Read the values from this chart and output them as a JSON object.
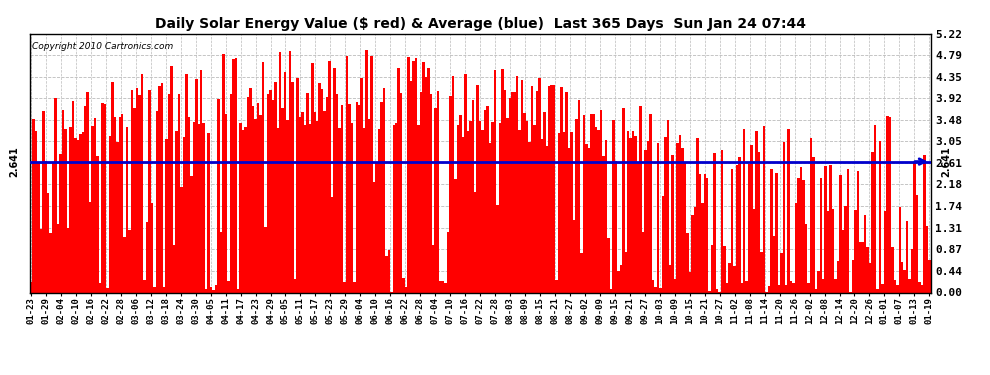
{
  "title": "Daily Solar Energy Value ($ red) & Average (blue)  Last 365 Days  Sun Jan 24 07:44",
  "copyright": "Copyright 2010 Cartronics.com",
  "average_value": 2.641,
  "ymax": 5.22,
  "yticks": [
    0.0,
    0.44,
    0.87,
    1.31,
    1.74,
    2.18,
    2.61,
    3.05,
    3.48,
    3.92,
    4.35,
    4.79,
    5.22
  ],
  "bar_color": "#ff0000",
  "avg_line_color": "#0000cd",
  "background_color": "#ffffff",
  "grid_color": "#bbbbbb",
  "x_labels": [
    "01-23",
    "01-29",
    "02-04",
    "02-10",
    "02-16",
    "02-22",
    "02-28",
    "03-06",
    "03-12",
    "03-18",
    "03-24",
    "03-30",
    "04-05",
    "04-11",
    "04-17",
    "04-23",
    "04-29",
    "05-05",
    "05-11",
    "05-17",
    "05-23",
    "05-29",
    "06-04",
    "06-10",
    "06-16",
    "06-22",
    "06-28",
    "07-04",
    "07-10",
    "07-16",
    "07-22",
    "07-28",
    "08-03",
    "08-09",
    "08-15",
    "08-21",
    "08-27",
    "09-02",
    "09-09",
    "09-15",
    "09-21",
    "09-27",
    "10-03",
    "10-09",
    "10-15",
    "10-21",
    "10-27",
    "11-02",
    "11-08",
    "11-14",
    "11-20",
    "11-26",
    "12-02",
    "12-08",
    "12-14",
    "12-20",
    "12-26",
    "01-01",
    "01-07",
    "01-13",
    "01-19"
  ],
  "n_days": 365
}
